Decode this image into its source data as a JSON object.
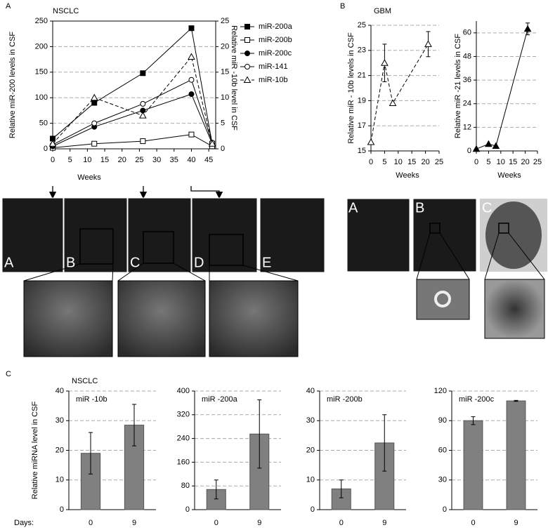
{
  "panel_labels": [
    "A",
    "B",
    "C"
  ],
  "image_labels_a": [
    "A",
    "B",
    "C",
    "D",
    "E"
  ],
  "image_labels_b": [
    "A",
    "B",
    "C"
  ],
  "chart_data": [
    {
      "type": "line",
      "title": "NSCLC",
      "ylabel": "Relative miR-200 levels in CSF",
      "y2label": "Relative miR -10b level in CSF",
      "xlabel": "Weeks",
      "x": [
        0,
        12,
        26,
        40,
        46
      ],
      "xlim": [
        0,
        47
      ],
      "xticks": [
        0,
        5,
        10,
        15,
        20,
        25,
        30,
        35,
        40,
        45
      ],
      "ylim": [
        0,
        250
      ],
      "yticks": [
        0,
        50,
        100,
        150,
        200,
        250
      ],
      "y2lim": [
        0,
        25
      ],
      "y2ticks": [
        0,
        5,
        10,
        15,
        20,
        25
      ],
      "grid": true,
      "series": [
        {
          "name": "miR-200a",
          "color": "#000000",
          "marker": "square",
          "filled": true,
          "dashed": false,
          "values": [
            20,
            90,
            148,
            236,
            10
          ]
        },
        {
          "name": "miR-200b",
          "color": "#000000",
          "marker": "square",
          "filled": false,
          "dashed": false,
          "values": [
            2,
            10,
            15,
            28,
            5
          ]
        },
        {
          "name": "miR-200c",
          "color": "#000000",
          "marker": "circle",
          "filled": true,
          "dashed": false,
          "values": [
            5,
            43,
            75,
            107,
            10
          ]
        },
        {
          "name": "miR-141",
          "color": "#000000",
          "marker": "circle",
          "filled": false,
          "dashed": false,
          "values": [
            8,
            50,
            88,
            135,
            12
          ]
        },
        {
          "name": "miR-10b",
          "color": "#000000",
          "marker": "triangle",
          "filled": false,
          "dashed": true,
          "axis": "y2",
          "values": [
            1,
            10,
            6.5,
            18,
            1
          ]
        }
      ]
    },
    {
      "type": "line",
      "title": "GBM",
      "ylabel": "Relative miR - 10b levels in CSF",
      "xlabel": "Weeks",
      "x": [
        0,
        5,
        8,
        21
      ],
      "xlim": [
        0,
        25
      ],
      "xticks": [
        0,
        5,
        10,
        15,
        20,
        25
      ],
      "ylim": [
        15,
        25
      ],
      "yticks": [
        15,
        17,
        19,
        21,
        23,
        25
      ],
      "grid": true,
      "series": [
        {
          "color": "#000000",
          "marker": "triangle",
          "filled": false,
          "dashed": true,
          "values": [
            15.7,
            22,
            18.8,
            23.5
          ],
          "errors": [
            null,
            1.5,
            null,
            1
          ]
        }
      ]
    },
    {
      "type": "line",
      "ylabel": "Relative miR -21 levels in CSF",
      "xlabel": "Weeks",
      "x": [
        0,
        5,
        8,
        21
      ],
      "xlim": [
        0,
        25
      ],
      "xticks": [
        0,
        5,
        10,
        15,
        20,
        25
      ],
      "ylim": [
        0,
        66
      ],
      "yticks": [
        0,
        12,
        24,
        36,
        48,
        60
      ],
      "grid": true,
      "series": [
        {
          "color": "#000000",
          "marker": "triangle",
          "filled": true,
          "dashed": false,
          "values": [
            1,
            3.5,
            2.5,
            62
          ],
          "errors": [
            null,
            null,
            null,
            3
          ]
        }
      ]
    },
    {
      "type": "bar",
      "subtitle": "NSCLC",
      "title": "miR -10b",
      "ylabel": "Relative miRNA level in CSF",
      "xlabel": "Days:",
      "color": "#808080",
      "categories": [
        "0",
        "9"
      ],
      "values": [
        19,
        28.5
      ],
      "errors": [
        7,
        7
      ],
      "ylim": [
        0,
        40
      ],
      "yticks": [
        0,
        10,
        20,
        30,
        40
      ],
      "grid": true
    },
    {
      "type": "bar",
      "title": "miR -200a",
      "color": "#808080",
      "categories": [
        "0",
        "9"
      ],
      "values": [
        68,
        255
      ],
      "errors": [
        32,
        115
      ],
      "ylim": [
        0,
        400
      ],
      "yticks": [
        0,
        80,
        160,
        240,
        320,
        400
      ],
      "grid": true
    },
    {
      "type": "bar",
      "title": "miR -200b",
      "color": "#808080",
      "categories": [
        "0",
        "9"
      ],
      "values": [
        7,
        22.5
      ],
      "errors": [
        3,
        9.5
      ],
      "ylim": [
        0,
        40
      ],
      "yticks": [
        0,
        10,
        20,
        30,
        40
      ],
      "grid": true
    },
    {
      "type": "bar",
      "title": "miR -200c",
      "color": "#808080",
      "categories": [
        "0",
        "9"
      ],
      "values": [
        90,
        110
      ],
      "errors": [
        4,
        0.5
      ],
      "ylim": [
        0,
        120
      ],
      "yticks": [
        0,
        30,
        60,
        90,
        120
      ],
      "grid": true
    }
  ]
}
